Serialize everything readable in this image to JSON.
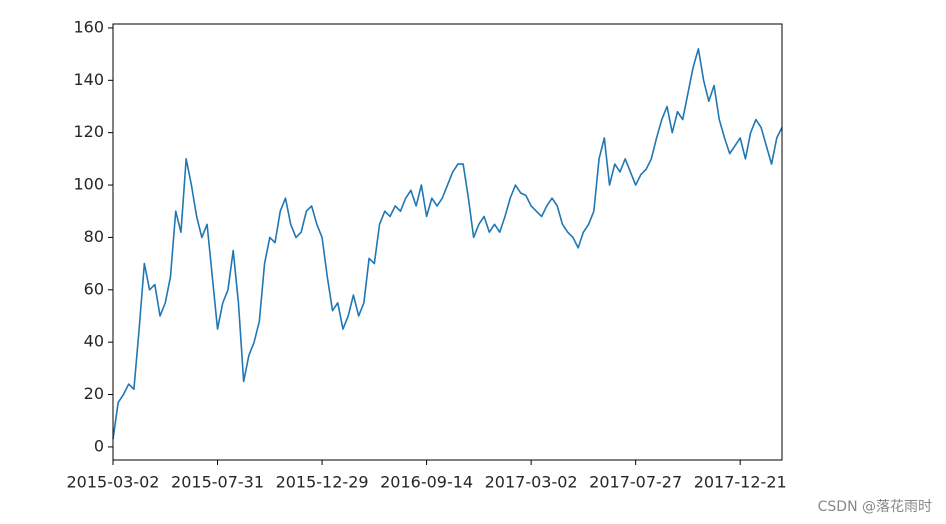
{
  "chart_data": {
    "type": "line",
    "x": [
      0,
      5,
      10,
      15,
      20,
      25,
      30,
      35,
      40,
      45,
      50,
      55,
      60,
      65,
      70,
      75,
      80,
      85,
      90,
      95,
      100,
      105,
      110,
      115,
      120,
      125,
      130,
      135,
      140,
      145,
      150,
      155,
      160,
      165,
      170,
      175,
      180,
      185,
      190,
      195,
      200,
      205,
      210,
      215,
      220,
      225,
      230,
      235,
      240,
      245,
      250,
      255,
      260,
      265,
      270,
      275,
      280,
      285,
      290,
      295,
      300,
      305,
      310,
      315,
      320,
      325,
      330,
      335,
      340,
      345,
      350,
      355,
      360,
      365,
      370,
      375,
      380,
      385,
      390,
      395,
      400,
      405,
      410,
      415,
      420,
      425,
      430,
      435,
      440,
      445,
      450,
      455,
      460,
      465,
      470,
      475,
      480,
      485,
      490,
      495,
      500,
      505,
      510,
      515,
      520,
      525,
      530,
      535,
      540,
      545,
      550,
      555,
      560,
      565,
      570,
      575,
      580,
      585,
      590,
      595,
      600,
      605,
      610,
      615,
      620,
      625,
      630,
      635,
      640
    ],
    "values": [
      3,
      17,
      20,
      24,
      22,
      45,
      70,
      60,
      62,
      50,
      55,
      65,
      90,
      82,
      110,
      100,
      88,
      80,
      85,
      65,
      45,
      55,
      60,
      75,
      55,
      25,
      35,
      40,
      48,
      70,
      80,
      78,
      90,
      95,
      85,
      80,
      82,
      90,
      92,
      85,
      80,
      65,
      52,
      55,
      45,
      50,
      58,
      50,
      55,
      72,
      70,
      85,
      90,
      88,
      92,
      90,
      95,
      98,
      92,
      100,
      88,
      95,
      92,
      95,
      100,
      105,
      108,
      108,
      95,
      80,
      85,
      88,
      82,
      85,
      82,
      88,
      95,
      100,
      97,
      96,
      92,
      90,
      88,
      92,
      95,
      92,
      85,
      82,
      80,
      76,
      82,
      85,
      90,
      110,
      118,
      100,
      108,
      105,
      110,
      105,
      100,
      104,
      106,
      110,
      118,
      125,
      130,
      120,
      128,
      125,
      135,
      145,
      152,
      140,
      132,
      138,
      125,
      118,
      112,
      115,
      118,
      110,
      120,
      125,
      122,
      115,
      108,
      118,
      122
    ],
    "color": "#1f77b4",
    "xlim": [
      0,
      640
    ],
    "xticks": [
      {
        "value": 0,
        "label": "2015-03-02"
      },
      {
        "value": 100,
        "label": "2015-07-31"
      },
      {
        "value": 200,
        "label": "2015-12-29"
      },
      {
        "value": 300,
        "label": "2016-09-14"
      },
      {
        "value": 400,
        "label": "2017-03-02"
      },
      {
        "value": 500,
        "label": "2017-07-27"
      },
      {
        "value": 600,
        "label": "2017-12-21"
      }
    ],
    "ylim": [
      -5,
      161.5
    ],
    "yticks": [
      0,
      20,
      40,
      60,
      80,
      100,
      120,
      140,
      160
    ]
  },
  "watermark": "CSDN @落花雨时"
}
